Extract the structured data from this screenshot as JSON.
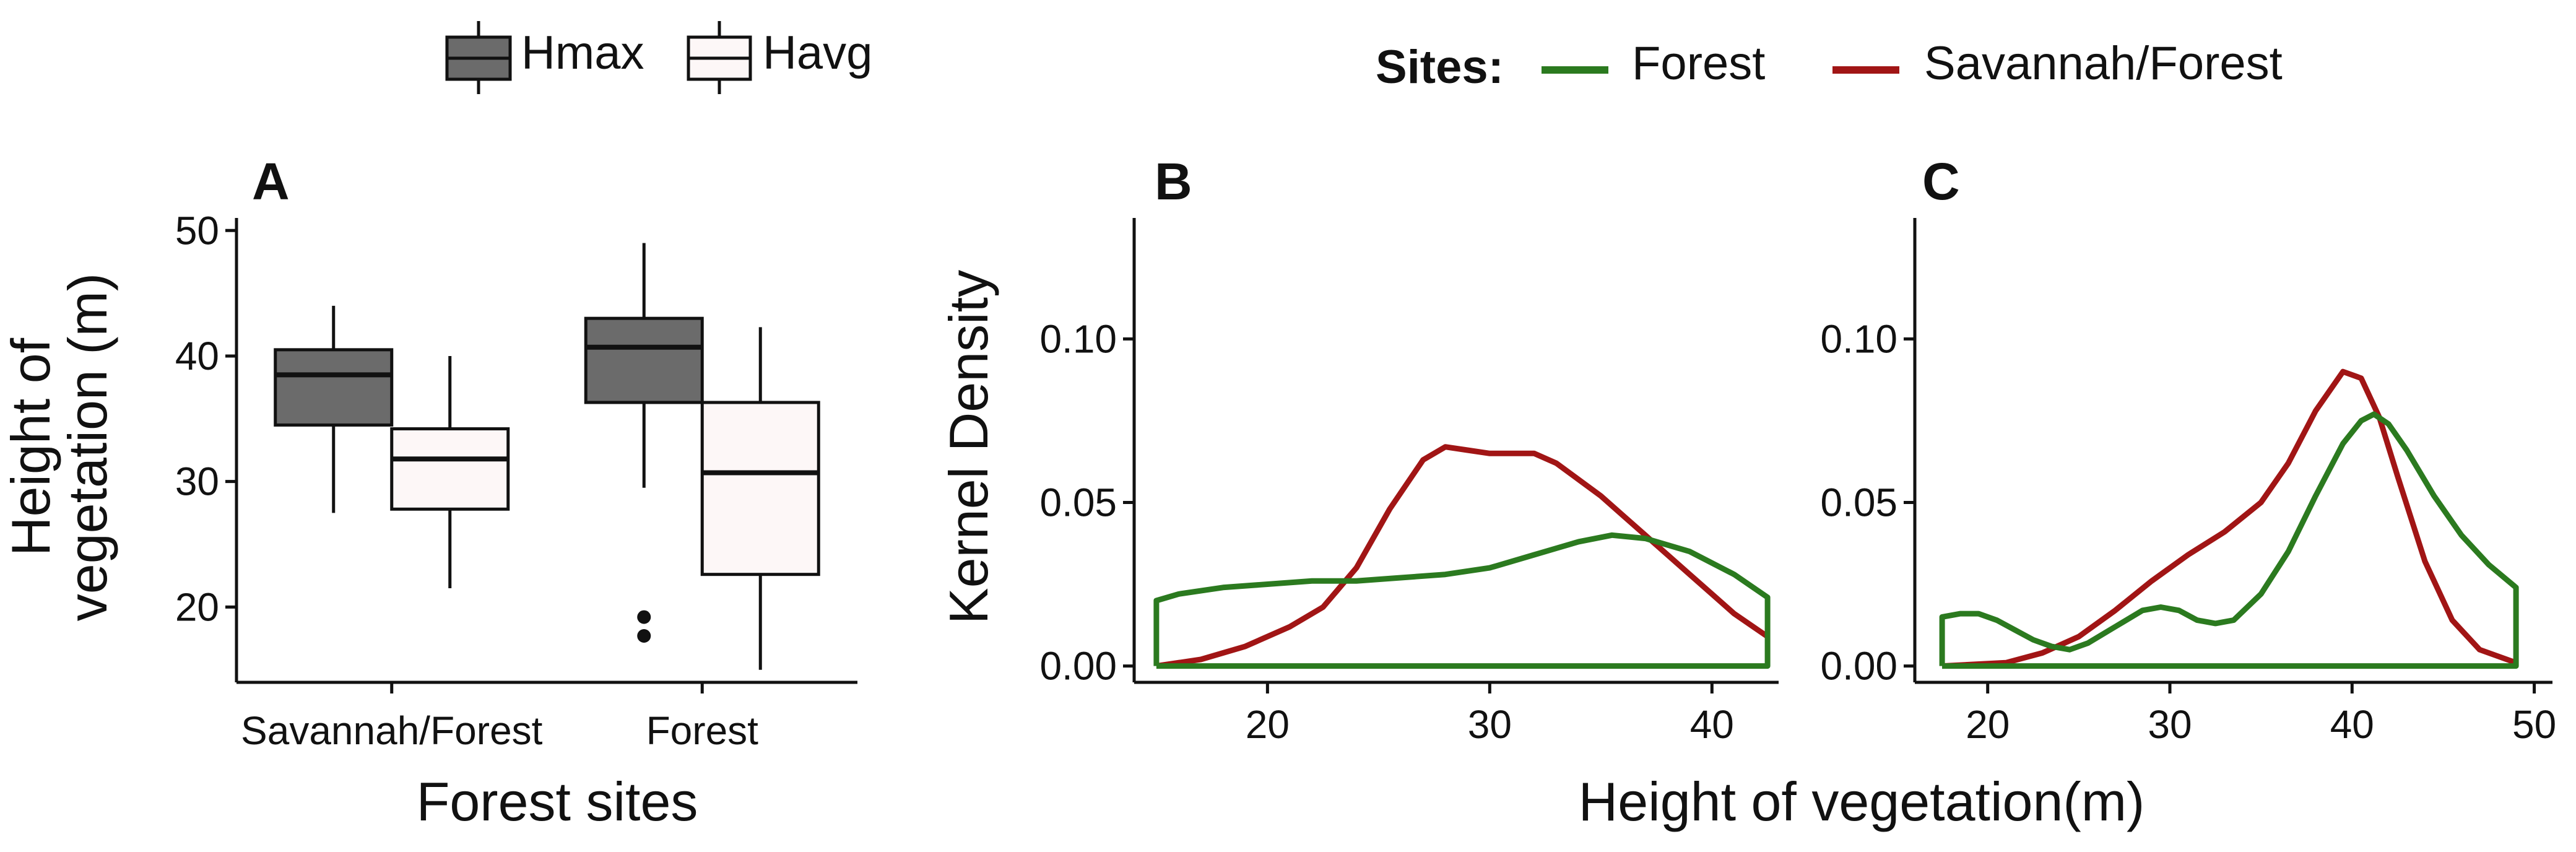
{
  "legends": {
    "box_legend": {
      "entries": [
        {
          "label": "Hmax",
          "fill": "#6b6b6b"
        },
        {
          "label": "Havg",
          "fill": "#fdf7f7"
        }
      ]
    },
    "sites_legend": {
      "title": "Sites:",
      "entries": [
        {
          "label": "Forest",
          "color": "#2b7a1f"
        },
        {
          "label": "Savannah/Forest",
          "color": "#a11515"
        }
      ]
    }
  },
  "x_axis_shared_title": "Height of vegetation(m)",
  "chart_data": [
    {
      "panel": "A",
      "type": "box",
      "xlabel": "Forest sites",
      "ylabel_lines": [
        "Height of",
        "vegetation (m)"
      ],
      "ylim": [
        14,
        51
      ],
      "yticks": [
        20,
        30,
        40,
        50
      ],
      "categories": [
        "Savannah/Forest",
        "Forest"
      ],
      "series": [
        {
          "name": "Hmax",
          "boxes": [
            {
              "category": "Savannah/Forest",
              "min": 27.5,
              "q1": 34.5,
              "median": 38.5,
              "q3": 40.5,
              "max": 44.0,
              "outliers": []
            },
            {
              "category": "Forest",
              "min": 29.5,
              "q1": 36.3,
              "median": 40.7,
              "q3": 43.0,
              "max": 49.0,
              "outliers": [
                19.2,
                17.7
              ]
            }
          ]
        },
        {
          "name": "Havg",
          "boxes": [
            {
              "category": "Savannah/Forest",
              "min": 21.5,
              "q1": 27.8,
              "median": 31.8,
              "q3": 34.2,
              "max": 40.0,
              "outliers": []
            },
            {
              "category": "Forest",
              "min": 15.0,
              "q1": 22.6,
              "median": 30.7,
              "q3": 36.3,
              "max": 42.3,
              "outliers": []
            }
          ]
        }
      ]
    },
    {
      "panel": "B",
      "type": "line",
      "ylabel": "Kernel Density",
      "xlim": [
        14,
        43
      ],
      "ylim": [
        -0.005,
        0.137
      ],
      "xticks": [
        20,
        30,
        40
      ],
      "yticks": [
        0.0,
        0.05,
        0.1
      ],
      "ytick_labels": [
        "0.00",
        "0.05",
        "0.10"
      ],
      "series": [
        {
          "name": "Forest",
          "x": [
            15,
            15,
            16,
            18,
            20,
            22,
            24,
            26,
            28,
            30,
            32,
            34,
            35.5,
            37,
            39,
            41,
            42.5,
            42.5,
            15
          ],
          "y": [
            0,
            0.02,
            0.022,
            0.024,
            0.025,
            0.026,
            0.026,
            0.027,
            0.028,
            0.03,
            0.034,
            0.038,
            0.04,
            0.039,
            0.035,
            0.028,
            0.021,
            0,
            0
          ]
        },
        {
          "name": "Savannah/Forest",
          "x": [
            15,
            17,
            19,
            21,
            22.5,
            24,
            25.5,
            27,
            28,
            29,
            30,
            31,
            32,
            33,
            34,
            35,
            36,
            37,
            38,
            39,
            40,
            41,
            42.5
          ],
          "y": [
            0,
            0.002,
            0.006,
            0.012,
            0.018,
            0.03,
            0.048,
            0.063,
            0.067,
            0.066,
            0.065,
            0.065,
            0.065,
            0.062,
            0.057,
            0.052,
            0.046,
            0.04,
            0.034,
            0.028,
            0.022,
            0.016,
            0.009
          ]
        }
      ]
    },
    {
      "panel": "C",
      "type": "line",
      "xlim": [
        16,
        51
      ],
      "ylim": [
        -0.005,
        0.137
      ],
      "xticks": [
        20,
        30,
        40,
        50
      ],
      "yticks": [
        0.0,
        0.05,
        0.1
      ],
      "ytick_labels": [
        "0.00",
        "0.05",
        "0.10"
      ],
      "series": [
        {
          "name": "Forest",
          "x": [
            17.5,
            17.5,
            18.5,
            19.5,
            20.5,
            21.5,
            22.5,
            23.5,
            24.5,
            25.5,
            27,
            28.5,
            29.5,
            30.5,
            31.5,
            32.5,
            33.5,
            35,
            36.5,
            38,
            39.5,
            40.5,
            41.2,
            42,
            43,
            44.5,
            46,
            47.5,
            49,
            49,
            17.5
          ],
          "y": [
            0,
            0.015,
            0.016,
            0.016,
            0.014,
            0.011,
            0.008,
            0.006,
            0.005,
            0.007,
            0.012,
            0.017,
            0.018,
            0.017,
            0.014,
            0.013,
            0.014,
            0.022,
            0.035,
            0.052,
            0.068,
            0.075,
            0.077,
            0.074,
            0.066,
            0.052,
            0.04,
            0.031,
            0.024,
            0,
            0
          ]
        },
        {
          "name": "Savannah/Forest",
          "x": [
            17.5,
            21,
            23,
            25,
            27,
            29,
            31,
            33,
            35,
            36.5,
            38,
            39.5,
            40.5,
            41.5,
            42.5,
            44,
            45.5,
            47,
            49
          ],
          "y": [
            0,
            0.001,
            0.004,
            0.009,
            0.017,
            0.026,
            0.034,
            0.041,
            0.05,
            0.062,
            0.078,
            0.09,
            0.088,
            0.076,
            0.058,
            0.032,
            0.014,
            0.005,
            0.001
          ]
        }
      ]
    }
  ]
}
